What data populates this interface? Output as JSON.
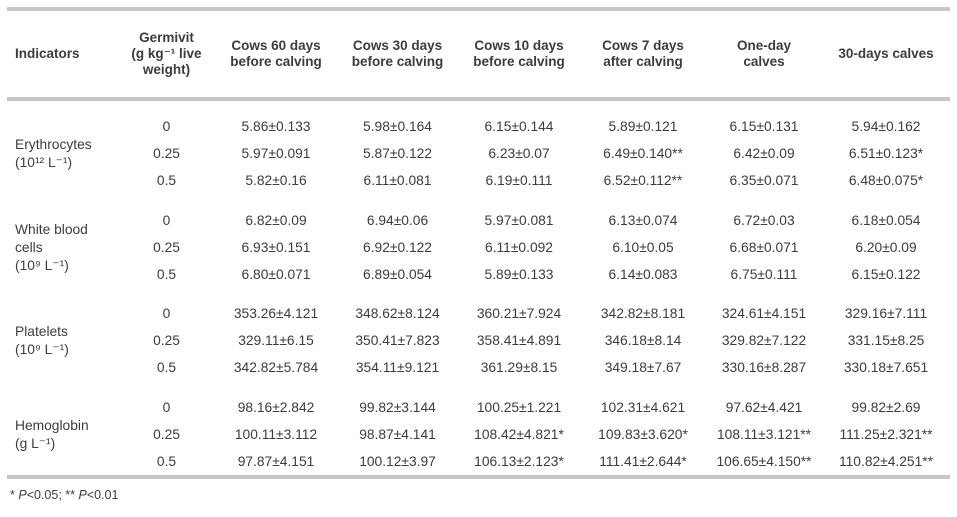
{
  "colors": {
    "text": "#3c3c3c",
    "rule": "#c6c6c6"
  },
  "table": {
    "headers": [
      "Indicators",
      "Germivit\n(g kg⁻¹ live\nweight)",
      "Cows 60 days\nbefore calving",
      "Cows 30 days\nbefore calving",
      "Cows 10 days\nbefore calving",
      "Cows 7 days\nafter calving",
      "One-day\ncalves",
      "30-days calves"
    ],
    "groups": [
      {
        "indicator": "Erythrocytes\n(10¹² L⁻¹)",
        "rows": [
          {
            "dose": "0",
            "values": [
              "5.86±0.133",
              "5.98±0.164",
              "6.15±0.144",
              "5.89±0.121",
              "6.15±0.131",
              "5.94±0.162"
            ]
          },
          {
            "dose": "0.25",
            "values": [
              "5.97±0.091",
              "5.87±0.122",
              "6.23±0.07",
              "6.49±0.140**",
              "6.42±0.09",
              "6.51±0.123*"
            ]
          },
          {
            "dose": "0.5",
            "values": [
              "5.82±0.16",
              "6.11±0.081",
              "6.19±0.111",
              "6.52±0.112**",
              "6.35±0.071",
              "6.48±0.075*"
            ]
          }
        ]
      },
      {
        "indicator": "White blood\ncells\n(10⁹ L⁻¹)",
        "rows": [
          {
            "dose": "0",
            "values": [
              "6.82±0.09",
              "6.94±0.06",
              "5.97±0.081",
              "6.13±0.074",
              "6.72±0.03",
              "6.18±0.054"
            ]
          },
          {
            "dose": "0.25",
            "values": [
              "6.93±0.151",
              "6.92±0.122",
              "6.11±0.092",
              "6.10±0.05",
              "6.68±0.071",
              "6.20±0.09"
            ]
          },
          {
            "dose": "0.5",
            "values": [
              "6.80±0.071",
              "6.89±0.054",
              "5.89±0.133",
              "6.14±0.083",
              "6.75±0.111",
              "6.15±0.122"
            ]
          }
        ]
      },
      {
        "indicator": "Platelets\n(10⁹ L⁻¹)",
        "rows": [
          {
            "dose": "0",
            "values": [
              "353.26±4.121",
              "348.62±8.124",
              "360.21±7.924",
              "342.82±8.181",
              "324.61±4.151",
              "329.16±7.111"
            ]
          },
          {
            "dose": "0.25",
            "values": [
              "329.11±6.15",
              "350.41±7.823",
              "358.41±4.891",
              "346.18±8.14",
              "329.82±7.122",
              "331.15±8.25"
            ]
          },
          {
            "dose": "0.5",
            "values": [
              "342.82±5.784",
              "354.11±9.121",
              "361.29±8.15",
              "349.18±7.67",
              "330.16±8.287",
              "330.18±7.651"
            ]
          }
        ]
      },
      {
        "indicator": "Hemoglobin\n(g L⁻¹)",
        "rows": [
          {
            "dose": "0",
            "values": [
              "98.16±2.842",
              "99.82±3.144",
              "100.25±1.221",
              "102.31±4.621",
              "97.62±4.421",
              "99.82±2.69"
            ]
          },
          {
            "dose": "0.25",
            "values": [
              "100.11±3.112",
              "98.87±4.141",
              "108.42±4.821*",
              "109.83±3.620*",
              "108.11±3.121**",
              "111.25±2.321**"
            ]
          },
          {
            "dose": "0.5",
            "values": [
              "97.87±4.151",
              "100.12±3.97",
              "106.13±2.123*",
              "111.41±2.644*",
              "106.65±4.150**",
              "110.82±4.251**"
            ]
          }
        ]
      }
    ]
  },
  "footnote": {
    "marker1": "* ",
    "p1": "P",
    "value1": "<0.05; ",
    "marker2": "** ",
    "p2": "P",
    "value2": "<0.01"
  }
}
